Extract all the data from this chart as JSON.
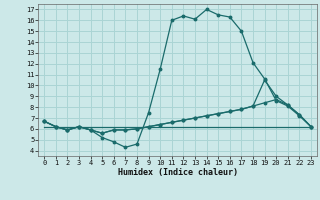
{
  "xlabel": "Humidex (Indice chaleur)",
  "bg_color": "#cce8e8",
  "grid_color": "#aad4d4",
  "line_color": "#1a6b6b",
  "xlim": [
    -0.5,
    23.5
  ],
  "ylim": [
    3.5,
    17.5
  ],
  "xticks": [
    0,
    1,
    2,
    3,
    4,
    5,
    6,
    7,
    8,
    9,
    10,
    11,
    12,
    13,
    14,
    15,
    16,
    17,
    18,
    19,
    20,
    21,
    22,
    23
  ],
  "yticks": [
    4,
    5,
    6,
    7,
    8,
    9,
    10,
    11,
    12,
    13,
    14,
    15,
    16,
    17
  ],
  "line1_x": [
    0,
    1,
    2,
    3,
    4,
    5,
    6,
    7,
    8,
    9,
    10,
    11,
    12,
    13,
    14,
    15,
    16,
    17,
    18,
    19,
    20,
    21,
    22,
    23
  ],
  "line1_y": [
    6.7,
    6.2,
    5.9,
    6.2,
    5.9,
    5.2,
    4.8,
    4.3,
    4.6,
    7.5,
    11.5,
    16.0,
    16.4,
    16.1,
    17.0,
    16.5,
    16.3,
    15.0,
    12.1,
    10.6,
    8.6,
    8.1,
    7.2,
    6.2
  ],
  "line2_x": [
    0,
    1,
    2,
    3,
    4,
    5,
    6,
    7,
    8,
    9,
    10,
    11,
    12,
    13,
    14,
    15,
    16,
    17,
    18,
    19,
    20,
    21,
    22,
    23
  ],
  "line2_y": [
    6.7,
    6.2,
    5.9,
    6.2,
    5.9,
    5.6,
    5.9,
    5.9,
    6.0,
    6.2,
    6.4,
    6.6,
    6.8,
    7.0,
    7.2,
    7.4,
    7.6,
    7.8,
    8.1,
    8.4,
    8.7,
    8.2,
    7.3,
    6.2
  ],
  "line3_x": [
    0,
    1,
    2,
    3,
    4,
    5,
    6,
    7,
    8,
    9,
    10,
    11,
    12,
    13,
    14,
    15,
    16,
    17,
    18,
    19,
    20,
    21,
    22,
    23
  ],
  "line3_y": [
    6.7,
    6.2,
    5.9,
    6.2,
    5.9,
    5.6,
    5.9,
    5.9,
    6.0,
    6.2,
    6.4,
    6.6,
    6.8,
    7.0,
    7.2,
    7.4,
    7.6,
    7.8,
    8.1,
    10.5,
    9.0,
    8.2,
    7.3,
    6.2
  ],
  "line4_x": [
    0,
    1,
    2,
    3,
    4,
    5,
    6,
    7,
    8,
    9,
    10,
    11,
    12,
    13,
    14,
    15,
    16,
    17,
    18,
    19,
    20,
    21,
    22,
    23
  ],
  "line4_y": [
    6.2,
    6.2,
    6.2,
    6.2,
    6.2,
    6.2,
    6.2,
    6.2,
    6.2,
    6.2,
    6.2,
    6.2,
    6.2,
    6.2,
    6.2,
    6.2,
    6.2,
    6.2,
    6.2,
    6.2,
    6.2,
    6.2,
    6.2,
    6.2
  ]
}
